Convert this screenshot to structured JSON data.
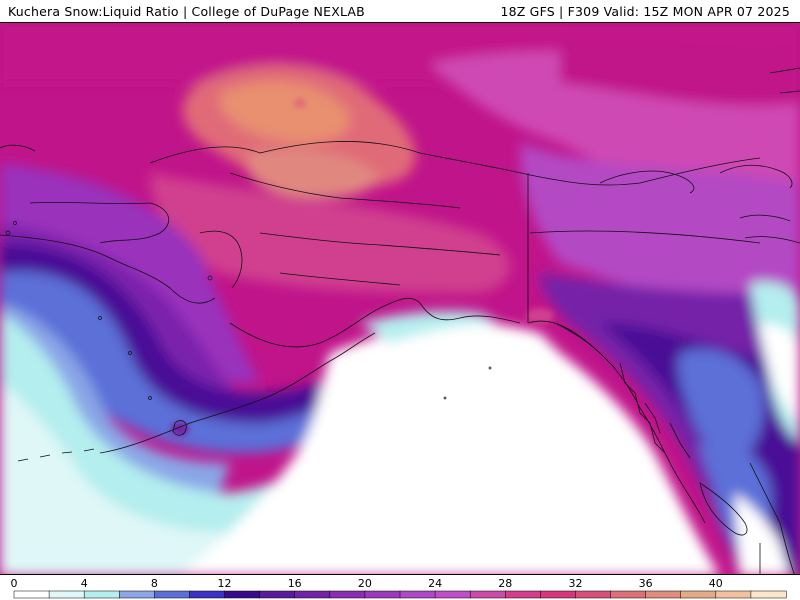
{
  "header": {
    "left_title": "Kuchera Snow:Liquid Ratio | College of DuPage NEXLAB",
    "right_title": "18Z GFS | F309 Valid: 15Z MON APR 07 2025"
  },
  "colorbar": {
    "tick_labels": [
      "0",
      "4",
      "8",
      "12",
      "16",
      "20",
      "24",
      "28",
      "32",
      "36",
      "40"
    ],
    "colors": [
      "#ffffff",
      "#dff7f7",
      "#b4eeee",
      "#8aa6e6",
      "#5b6fd8",
      "#3b33c4",
      "#3a0a8e",
      "#5a1a9e",
      "#7422a8",
      "#8a2eb4",
      "#9c3abe",
      "#ae48c6",
      "#c04ec6",
      "#cc4aa8",
      "#d43c8c",
      "#d8367a",
      "#d8507a",
      "#dc7078",
      "#e08e7c",
      "#e2aa86",
      "#f2c2a0",
      "#fbe6cc"
    ],
    "min": 0,
    "max": 44
  },
  "map": {
    "region": "Alaska and Western Canada",
    "background_color": "#ffffff"
  }
}
